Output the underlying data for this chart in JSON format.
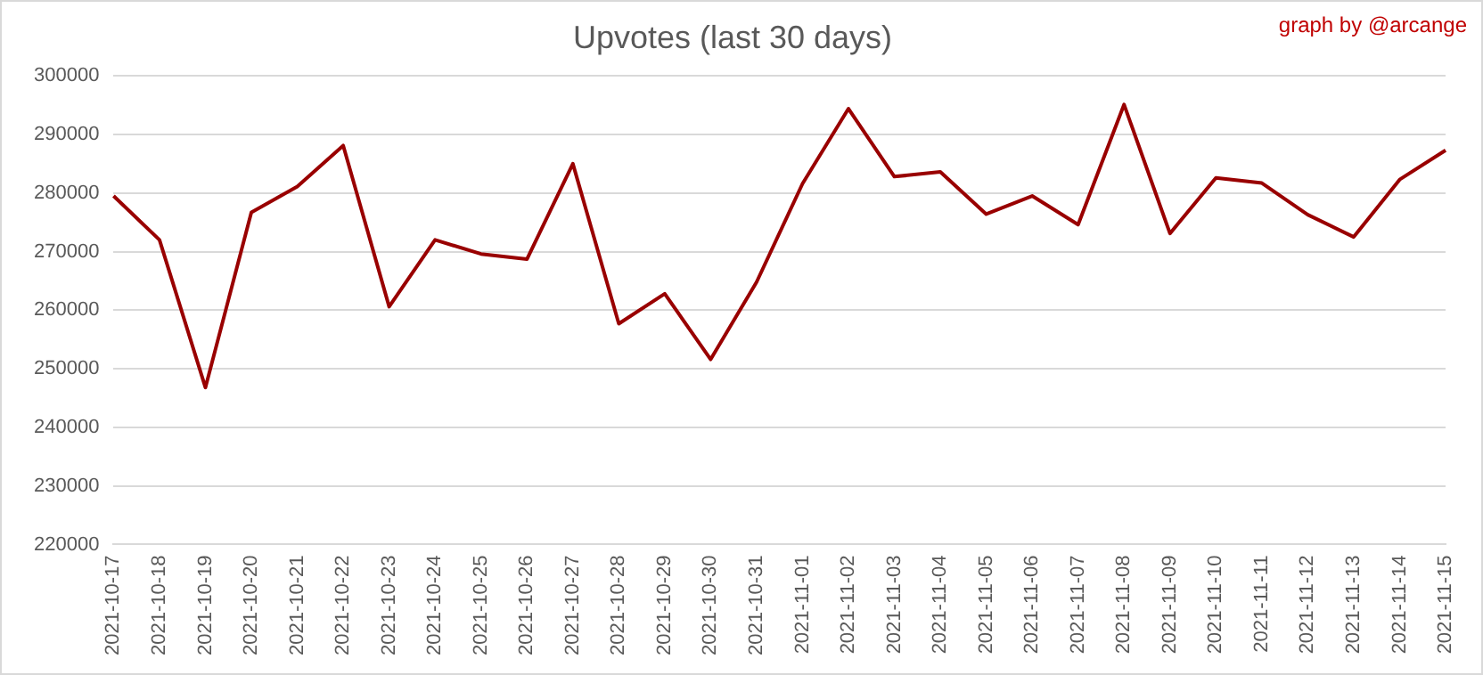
{
  "chart_data": {
    "type": "line",
    "title": "Upvotes (last 30 days)",
    "annotations": [
      "graph by @arcange"
    ],
    "categories": [
      "2021-10-17",
      "2021-10-18",
      "2021-10-19",
      "2021-10-20",
      "2021-10-21",
      "2021-10-22",
      "2021-10-23",
      "2021-10-24",
      "2021-10-25",
      "2021-10-26",
      "2021-10-27",
      "2021-10-28",
      "2021-10-29",
      "2021-10-30",
      "2021-10-31",
      "2021-11-01",
      "2021-11-02",
      "2021-11-03",
      "2021-11-04",
      "2021-11-05",
      "2021-11-06",
      "2021-11-07",
      "2021-11-08",
      "2021-11-09",
      "2021-11-10",
      "2021-11-11",
      "2021-11-12",
      "2021-11-13",
      "2021-11-14",
      "2021-11-15"
    ],
    "series": [
      {
        "color": "#990000",
        "values": [
          279500,
          272000,
          246800,
          276700,
          281100,
          288100,
          260600,
          272000,
          269600,
          268700,
          285000,
          257700,
          262800,
          251600,
          264800,
          281600,
          294400,
          282800,
          283600,
          276400,
          279500,
          274600,
          295100,
          273100,
          282600,
          281700,
          276300,
          272500,
          282300,
          287300
        ]
      }
    ],
    "ylim": [
      220000,
      300000
    ],
    "yticks": [
      220000,
      230000,
      240000,
      250000,
      260000,
      270000,
      280000,
      290000,
      300000
    ],
    "grid": "y",
    "legend": false,
    "marker": "none",
    "line_style": "solid"
  }
}
